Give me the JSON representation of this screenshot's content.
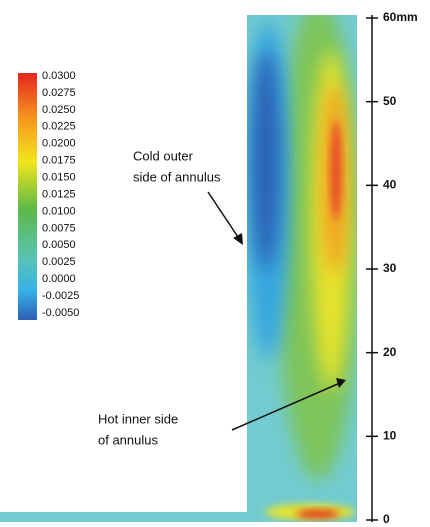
{
  "colorbar": {
    "labels": [
      "0.0300",
      "0.0275",
      "0.0250",
      "0.0225",
      "0.0200",
      "0.0175",
      "0.0150",
      "0.0125",
      "0.0100",
      "0.0075",
      "0.0050",
      "0.0025",
      "0.0000",
      "-0.0025",
      "-0.0050"
    ]
  },
  "scale": {
    "labels": [
      "60mm",
      "50",
      "40",
      "30",
      "20",
      "10",
      "0"
    ]
  },
  "annotations": [
    {
      "lines": [
        "Cold outer",
        "side of annulus"
      ]
    },
    {
      "lines": [
        "Hot inner side",
        "of annulus"
      ]
    }
  ]
}
